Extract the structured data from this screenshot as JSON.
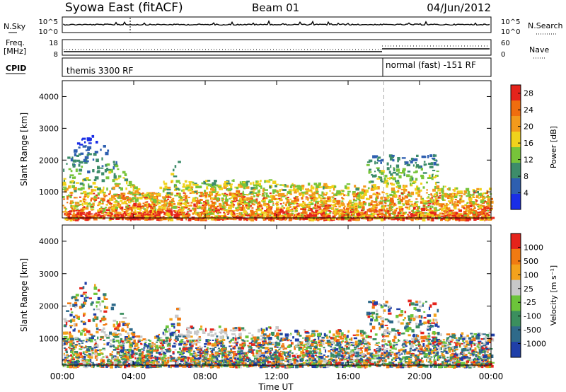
{
  "header": {
    "station": "Syowa East (fitACF)",
    "beam": "Beam 01",
    "date": "04/Jun/2012"
  },
  "strips": {
    "nsky_label": "N.Sky",
    "nsky_top": "10^5",
    "nsky_bottom": "10^0",
    "nsearch_label": "N.Search",
    "nsearch_top": "10^5",
    "nsearch_bottom": "10^0",
    "freq_label_1": "Freq.",
    "freq_label_2": "[MHz]",
    "freq_top": "18",
    "freq_bottom": "8",
    "nave_label": "Nave",
    "nave_top": "60",
    "nave_bottom": "0",
    "cpid_label": "CPID",
    "cpid_modes": [
      "themis 3300 RF",
      "normal (fast) -151 RF"
    ]
  },
  "chart_data": [
    {
      "type": "heatmap",
      "title": "",
      "ylabel": "Slant Range [km]",
      "xlabel": "",
      "yticks": [
        "1000",
        "2000",
        "3000",
        "4000"
      ],
      "ylim": [
        180,
        4500
      ],
      "xlim_hours": [
        0,
        24
      ],
      "xticks": [
        "00:00",
        "04:00",
        "08:00",
        "12:00",
        "16:00",
        "20:00",
        "00:00"
      ],
      "colorbar": {
        "label": "Power [dB]",
        "ticks": [
          "4",
          "8",
          "12",
          "16",
          "20",
          "24",
          "28"
        ],
        "range": [
          0,
          30
        ],
        "colors": [
          "#1a2ee6",
          "#2e5fb0",
          "#3d8c6a",
          "#77c43a",
          "#f0d21c",
          "#f39a1c",
          "#f06d0e",
          "#e5231b"
        ]
      }
    },
    {
      "type": "heatmap",
      "title": "",
      "ylabel": "Slant Range [km]",
      "xlabel": "Time UT",
      "yticks": [
        "1000",
        "2000",
        "3000",
        "4000"
      ],
      "ylim": [
        180,
        4500
      ],
      "xlim_hours": [
        0,
        24
      ],
      "xticks": [
        "00:00",
        "04:00",
        "08:00",
        "12:00",
        "16:00",
        "20:00",
        "00:00"
      ],
      "colorbar": {
        "label": "Velocity [m s⁻¹]",
        "ticks": [
          "1000",
          "500",
          "100",
          "25",
          "-25",
          "-100",
          "-500",
          "-1000"
        ],
        "range": [
          -1200,
          1200
        ],
        "colors": [
          "#1f3fa8",
          "#2f6a8a",
          "#3b8f5e",
          "#6cc43a",
          "#c8c8c8",
          "#f3a21c",
          "#f07a12",
          "#e5231b"
        ]
      }
    }
  ]
}
